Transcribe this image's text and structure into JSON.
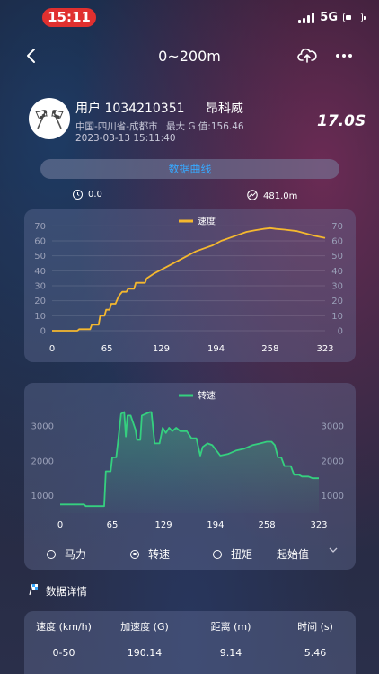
{
  "status": {
    "time": "15:11",
    "network": "5G"
  },
  "header": {
    "title": "0~200m"
  },
  "user": {
    "name": "用户 1034210351",
    "region": "中国-四川省-成都市",
    "datetime": "2023-03-13 15:11:40",
    "car": "昂科威",
    "max_g": "最大 G 值:156.46",
    "total_time": "17.0S"
  },
  "curve_button": "数据曲线",
  "stats": {
    "left": "0.0",
    "right": "481.0m"
  },
  "chart_data": [
    {
      "type": "line",
      "series": [
        {
          "name": "速度",
          "color": "#f5b82e"
        }
      ],
      "x_ticks": [
        "0",
        "65",
        "129",
        "194",
        "258",
        "323"
      ],
      "y_ticks": [
        "0",
        "10",
        "20",
        "30",
        "40",
        "50",
        "60",
        "70"
      ],
      "xlim": [
        0,
        323
      ],
      "ylim": [
        0,
        72
      ],
      "x": [
        0,
        30,
        32,
        45,
        47,
        55,
        57,
        62,
        64,
        68,
        70,
        75,
        78,
        80,
        83,
        88,
        90,
        97,
        99,
        110,
        112,
        120,
        130,
        140,
        150,
        160,
        170,
        180,
        190,
        200,
        210,
        220,
        230,
        240,
        250,
        258,
        265,
        275,
        290,
        300,
        310,
        323
      ],
      "values": [
        0,
        0,
        1,
        1,
        4,
        4,
        10,
        10,
        14,
        14,
        18,
        18,
        22,
        24,
        26,
        26,
        28,
        28,
        32,
        32,
        35,
        38,
        41,
        44,
        47,
        50,
        53,
        55,
        57,
        60,
        62,
        64,
        66,
        67,
        68,
        68.5,
        68,
        67.5,
        66.5,
        65,
        63.5,
        62
      ]
    },
    {
      "type": "area",
      "series": [
        {
          "name": "转速",
          "color": "#35d07f"
        }
      ],
      "x_ticks": [
        "0",
        "65",
        "129",
        "194",
        "258",
        "323"
      ],
      "y_ticks": [
        "1000",
        "2000",
        "3000"
      ],
      "xlim": [
        0,
        323
      ],
      "ylim": [
        500,
        3800
      ],
      "x": [
        0,
        30,
        32,
        55,
        57,
        63,
        65,
        70,
        72,
        76,
        80,
        82,
        84,
        88,
        94,
        96,
        100,
        102,
        112,
        114,
        118,
        124,
        128,
        132,
        136,
        140,
        145,
        150,
        158,
        164,
        170,
        175,
        178,
        184,
        190,
        195,
        200,
        210,
        220,
        230,
        240,
        250,
        258,
        264,
        268,
        272,
        276,
        280,
        288,
        292,
        298,
        302,
        310,
        315,
        323
      ],
      "values": [
        750,
        750,
        700,
        700,
        1700,
        1700,
        2100,
        2100,
        2500,
        3350,
        3400,
        2700,
        3300,
        3300,
        2900,
        2600,
        2600,
        3300,
        3400,
        3400,
        2500,
        2500,
        2950,
        2800,
        2950,
        2850,
        2950,
        2850,
        2850,
        2650,
        2650,
        2150,
        2400,
        2500,
        2450,
        2300,
        2150,
        2200,
        2300,
        2350,
        2450,
        2500,
        2550,
        2550,
        2450,
        2100,
        2100,
        1850,
        1850,
        1600,
        1600,
        1550,
        1550,
        1500,
        1500
      ]
    }
  ],
  "radio_options": [
    "马力",
    "转速",
    "扭矩"
  ],
  "radio_selected": 1,
  "dropdown_label": "起始值",
  "details_title": "数据详情",
  "table": {
    "headers": [
      "速度 (km/h)",
      "加速度 (G)",
      "距离 (m)",
      "时间 (s)"
    ],
    "rows": [
      [
        "0-50",
        "190.14",
        "9.14",
        "5.46"
      ]
    ]
  },
  "colors": {
    "accent": "#37a8ff",
    "speed_line": "#f5b82e",
    "rpm_line": "#35d07f",
    "status_pill": "#e0302f"
  },
  "icons": [
    "back-arrow-icon",
    "cloud-upload-icon",
    "more-icon",
    "checkered-flag-icon",
    "clock-icon",
    "distance-icon",
    "chevron-down-icon",
    "flag-icon"
  ]
}
